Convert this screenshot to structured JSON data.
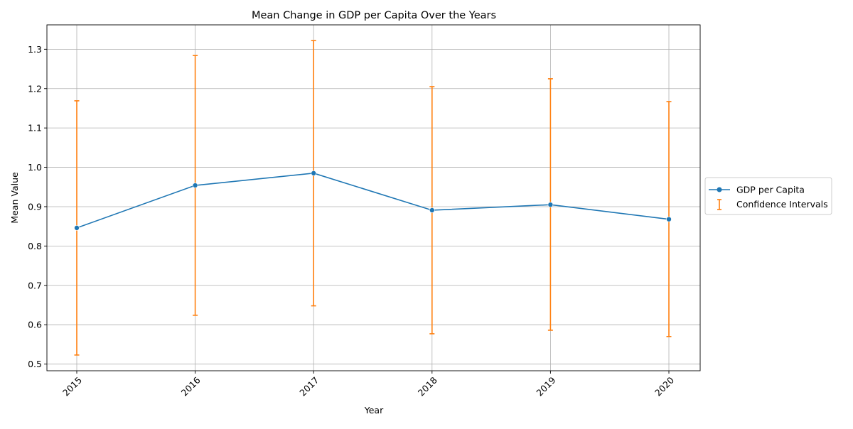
{
  "chart_data": {
    "type": "line",
    "title": "Mean Change in GDP per Capita Over the Years",
    "xlabel": "Year",
    "ylabel": "Mean Value",
    "x": [
      "2015",
      "2016",
      "2017",
      "2018",
      "2019",
      "2020"
    ],
    "series": [
      {
        "name": "GDP per Capita",
        "values": [
          0.846,
          0.954,
          0.985,
          0.891,
          0.905,
          0.868
        ],
        "lower": [
          0.523,
          0.624,
          0.648,
          0.577,
          0.586,
          0.57
        ],
        "upper": [
          1.169,
          1.284,
          1.322,
          1.205,
          1.225,
          1.167
        ],
        "color": "#1f77b4",
        "ci_color": "#ff7f0e"
      }
    ],
    "ci_legend": "Confidence Intervals",
    "ylim": [
      0.483,
      1.362
    ],
    "yticks": [
      "0.5",
      "0.6",
      "0.7",
      "0.8",
      "0.9",
      "1.0",
      "1.1",
      "1.2",
      "1.3"
    ],
    "grid": true,
    "legend_position": "outside-right"
  }
}
